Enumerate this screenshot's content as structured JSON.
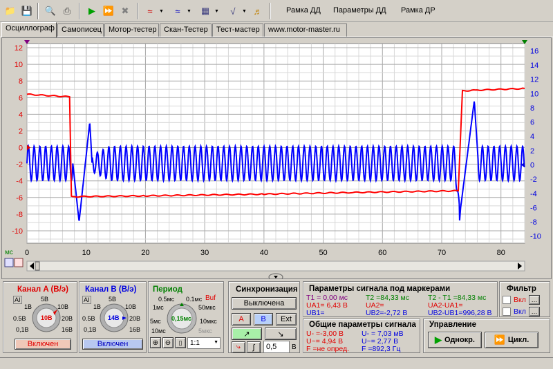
{
  "toolbar": {
    "menu": [
      "Рамка ДД",
      "Параметры ДД",
      "Рамка ДР"
    ]
  },
  "tabs": [
    "Осциллограф",
    "Самописец",
    "Мотор-тестер",
    "Скан-Тестер",
    "Тест-мастер",
    "www.motor-master.ru"
  ],
  "scope": {
    "x_unit": "мс",
    "left_scale_labels": [
      "12",
      "10",
      "8",
      "6",
      "4",
      "2",
      "0",
      "-2",
      "-4",
      "-6",
      "-8",
      "-10"
    ],
    "right_scale_labels": [
      "16",
      "14",
      "12",
      "10",
      "8",
      "6",
      "4",
      "2",
      "0",
      "-2",
      "-4",
      "-6",
      "-8",
      "-10"
    ],
    "x_labels": [
      "0",
      "10",
      "20",
      "30",
      "40",
      "50",
      "60",
      "70",
      "80"
    ],
    "colors": {
      "channel_a": "#ff0000",
      "channel_b": "#0000ff",
      "grid": "#c0c0c0"
    }
  },
  "chart_data": {
    "type": "line",
    "xlabel": "мс",
    "xlim": [
      0,
      84
    ],
    "ylim_left": [
      -11.5,
      12.5
    ],
    "ylim_right": [
      -11,
      17
    ],
    "series": [
      {
        "name": "A",
        "axis": "left",
        "x": [
          0,
          7.2,
          7.5,
          8,
          20,
          40,
          55,
          72.8,
          73.5,
          76,
          84
        ],
        "y": [
          6.4,
          6.1,
          -5.9,
          -5.9,
          -5.8,
          -5.6,
          -5.4,
          -5.2,
          6.8,
          6.9,
          7.1
        ]
      },
      {
        "name": "B",
        "axis": "right",
        "base_period_ms": 0.97,
        "amplitude_v": 2.4,
        "notes": "oscillation between markers",
        "markers_ms": [
          0,
          84.33
        ]
      }
    ]
  },
  "channel_a": {
    "title": "Канал A (В/э)",
    "scale_labels": [
      "AI",
      "5В",
      "1В",
      "10В",
      "0.5В",
      "20В",
      "0,1В",
      "16В"
    ],
    "knob_value": "10В",
    "button": "Включен"
  },
  "channel_b": {
    "title": "Канал B (В/э)",
    "scale_labels": [
      "AI",
      "5В",
      "1В",
      "10В",
      "0.5В",
      "20В",
      "0,1В",
      "16В"
    ],
    "knob_value": "14В",
    "button": "Включен"
  },
  "period": {
    "title": "Период",
    "buf": "Buf",
    "scale_labels": [
      "0.5мс",
      "0.1мс",
      "1мс",
      "50мкс",
      "5мс",
      "10мкс",
      "10мс",
      "5мкс"
    ],
    "knob_value": "0,15мс",
    "zoom_value": "1:1"
  },
  "sync": {
    "title": "Синхронизация",
    "state_button": "Выключена",
    "channel_buttons": [
      "A",
      "B",
      "Ext"
    ],
    "level_value": "0,5",
    "level_unit": "В"
  },
  "markers": {
    "title": "Параметры сигнала под маркерами",
    "col1": [
      "T1 = 0,00 мс",
      "UA1= 6,43 В",
      "UB1="
    ],
    "col2": [
      "T2 =84,33 мс",
      "UA2=",
      "UB2=-2,72 В"
    ],
    "col3": [
      "T2 - T1 =84,33 мс",
      "UA2-UA1=",
      "UB2-UB1=996,28 В"
    ]
  },
  "general": {
    "title": "Общие параметры сигнала",
    "col1": [
      "U- =-3,00 В",
      "U~= 4,94 В",
      "F =не опред."
    ],
    "col2": [
      "U- = 7,03 мВ",
      "U~= 2,77 В",
      "F =892,3 Гц"
    ]
  },
  "control": {
    "title": "Управление",
    "single_button": "Однокр.",
    "cycle_button": "Цикл."
  },
  "filter": {
    "title": "Фильтр",
    "items": [
      "Вкл",
      "Вкл"
    ]
  }
}
